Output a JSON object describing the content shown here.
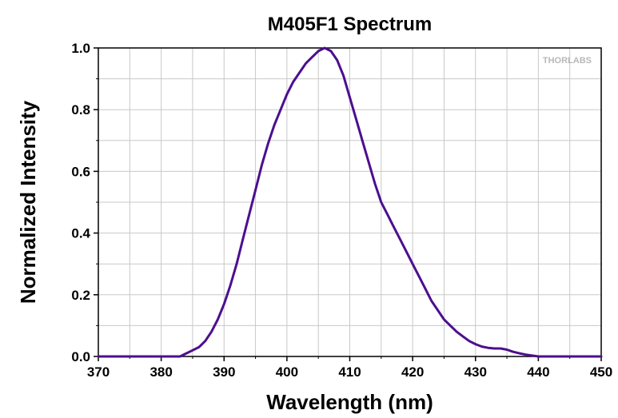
{
  "chart_data": {
    "type": "line",
    "title": "M405F1 Spectrum",
    "xlabel": "Wavelength (nm)",
    "ylabel": "Normalized Intensity",
    "xlim": [
      370,
      450
    ],
    "ylim": [
      0,
      1.0
    ],
    "xticks": [
      "370",
      "380",
      "390",
      "400",
      "410",
      "420",
      "430",
      "440",
      "450"
    ],
    "yticks": [
      "0.0",
      "0.2",
      "0.4",
      "0.6",
      "0.8",
      "1.0"
    ],
    "x_minor_step": 5,
    "y_minor_step": 0.1,
    "grid": true,
    "logo": "THORLABS",
    "series": [
      {
        "color": "#4b0f8f",
        "points": [
          [
            370,
            0.0
          ],
          [
            383,
            0.0
          ],
          [
            384,
            0.01
          ],
          [
            385,
            0.02
          ],
          [
            386,
            0.03
          ],
          [
            387,
            0.05
          ],
          [
            388,
            0.08
          ],
          [
            389,
            0.12
          ],
          [
            390,
            0.17
          ],
          [
            391,
            0.23
          ],
          [
            392,
            0.3
          ],
          [
            393,
            0.38
          ],
          [
            394,
            0.46
          ],
          [
            395,
            0.54
          ],
          [
            396,
            0.62
          ],
          [
            397,
            0.69
          ],
          [
            398,
            0.75
          ],
          [
            399,
            0.8
          ],
          [
            400,
            0.85
          ],
          [
            401,
            0.89
          ],
          [
            402,
            0.92
          ],
          [
            403,
            0.95
          ],
          [
            404,
            0.97
          ],
          [
            405,
            0.99
          ],
          [
            406,
            1.0
          ],
          [
            407,
            0.99
          ],
          [
            408,
            0.96
          ],
          [
            409,
            0.91
          ],
          [
            410,
            0.84
          ],
          [
            411,
            0.77
          ],
          [
            412,
            0.7
          ],
          [
            413,
            0.63
          ],
          [
            414,
            0.56
          ],
          [
            415,
            0.5
          ],
          [
            416,
            0.46
          ],
          [
            417,
            0.42
          ],
          [
            418,
            0.38
          ],
          [
            419,
            0.34
          ],
          [
            420,
            0.3
          ],
          [
            421,
            0.26
          ],
          [
            422,
            0.22
          ],
          [
            423,
            0.18
          ],
          [
            424,
            0.15
          ],
          [
            425,
            0.12
          ],
          [
            426,
            0.1
          ],
          [
            427,
            0.08
          ],
          [
            428,
            0.065
          ],
          [
            429,
            0.05
          ],
          [
            430,
            0.04
          ],
          [
            431,
            0.032
          ],
          [
            432,
            0.028
          ],
          [
            433,
            0.026
          ],
          [
            434,
            0.026
          ],
          [
            435,
            0.022
          ],
          [
            436,
            0.015
          ],
          [
            437,
            0.01
          ],
          [
            438,
            0.006
          ],
          [
            439,
            0.003
          ],
          [
            440,
            0.0
          ],
          [
            450,
            0.0
          ]
        ]
      }
    ]
  }
}
